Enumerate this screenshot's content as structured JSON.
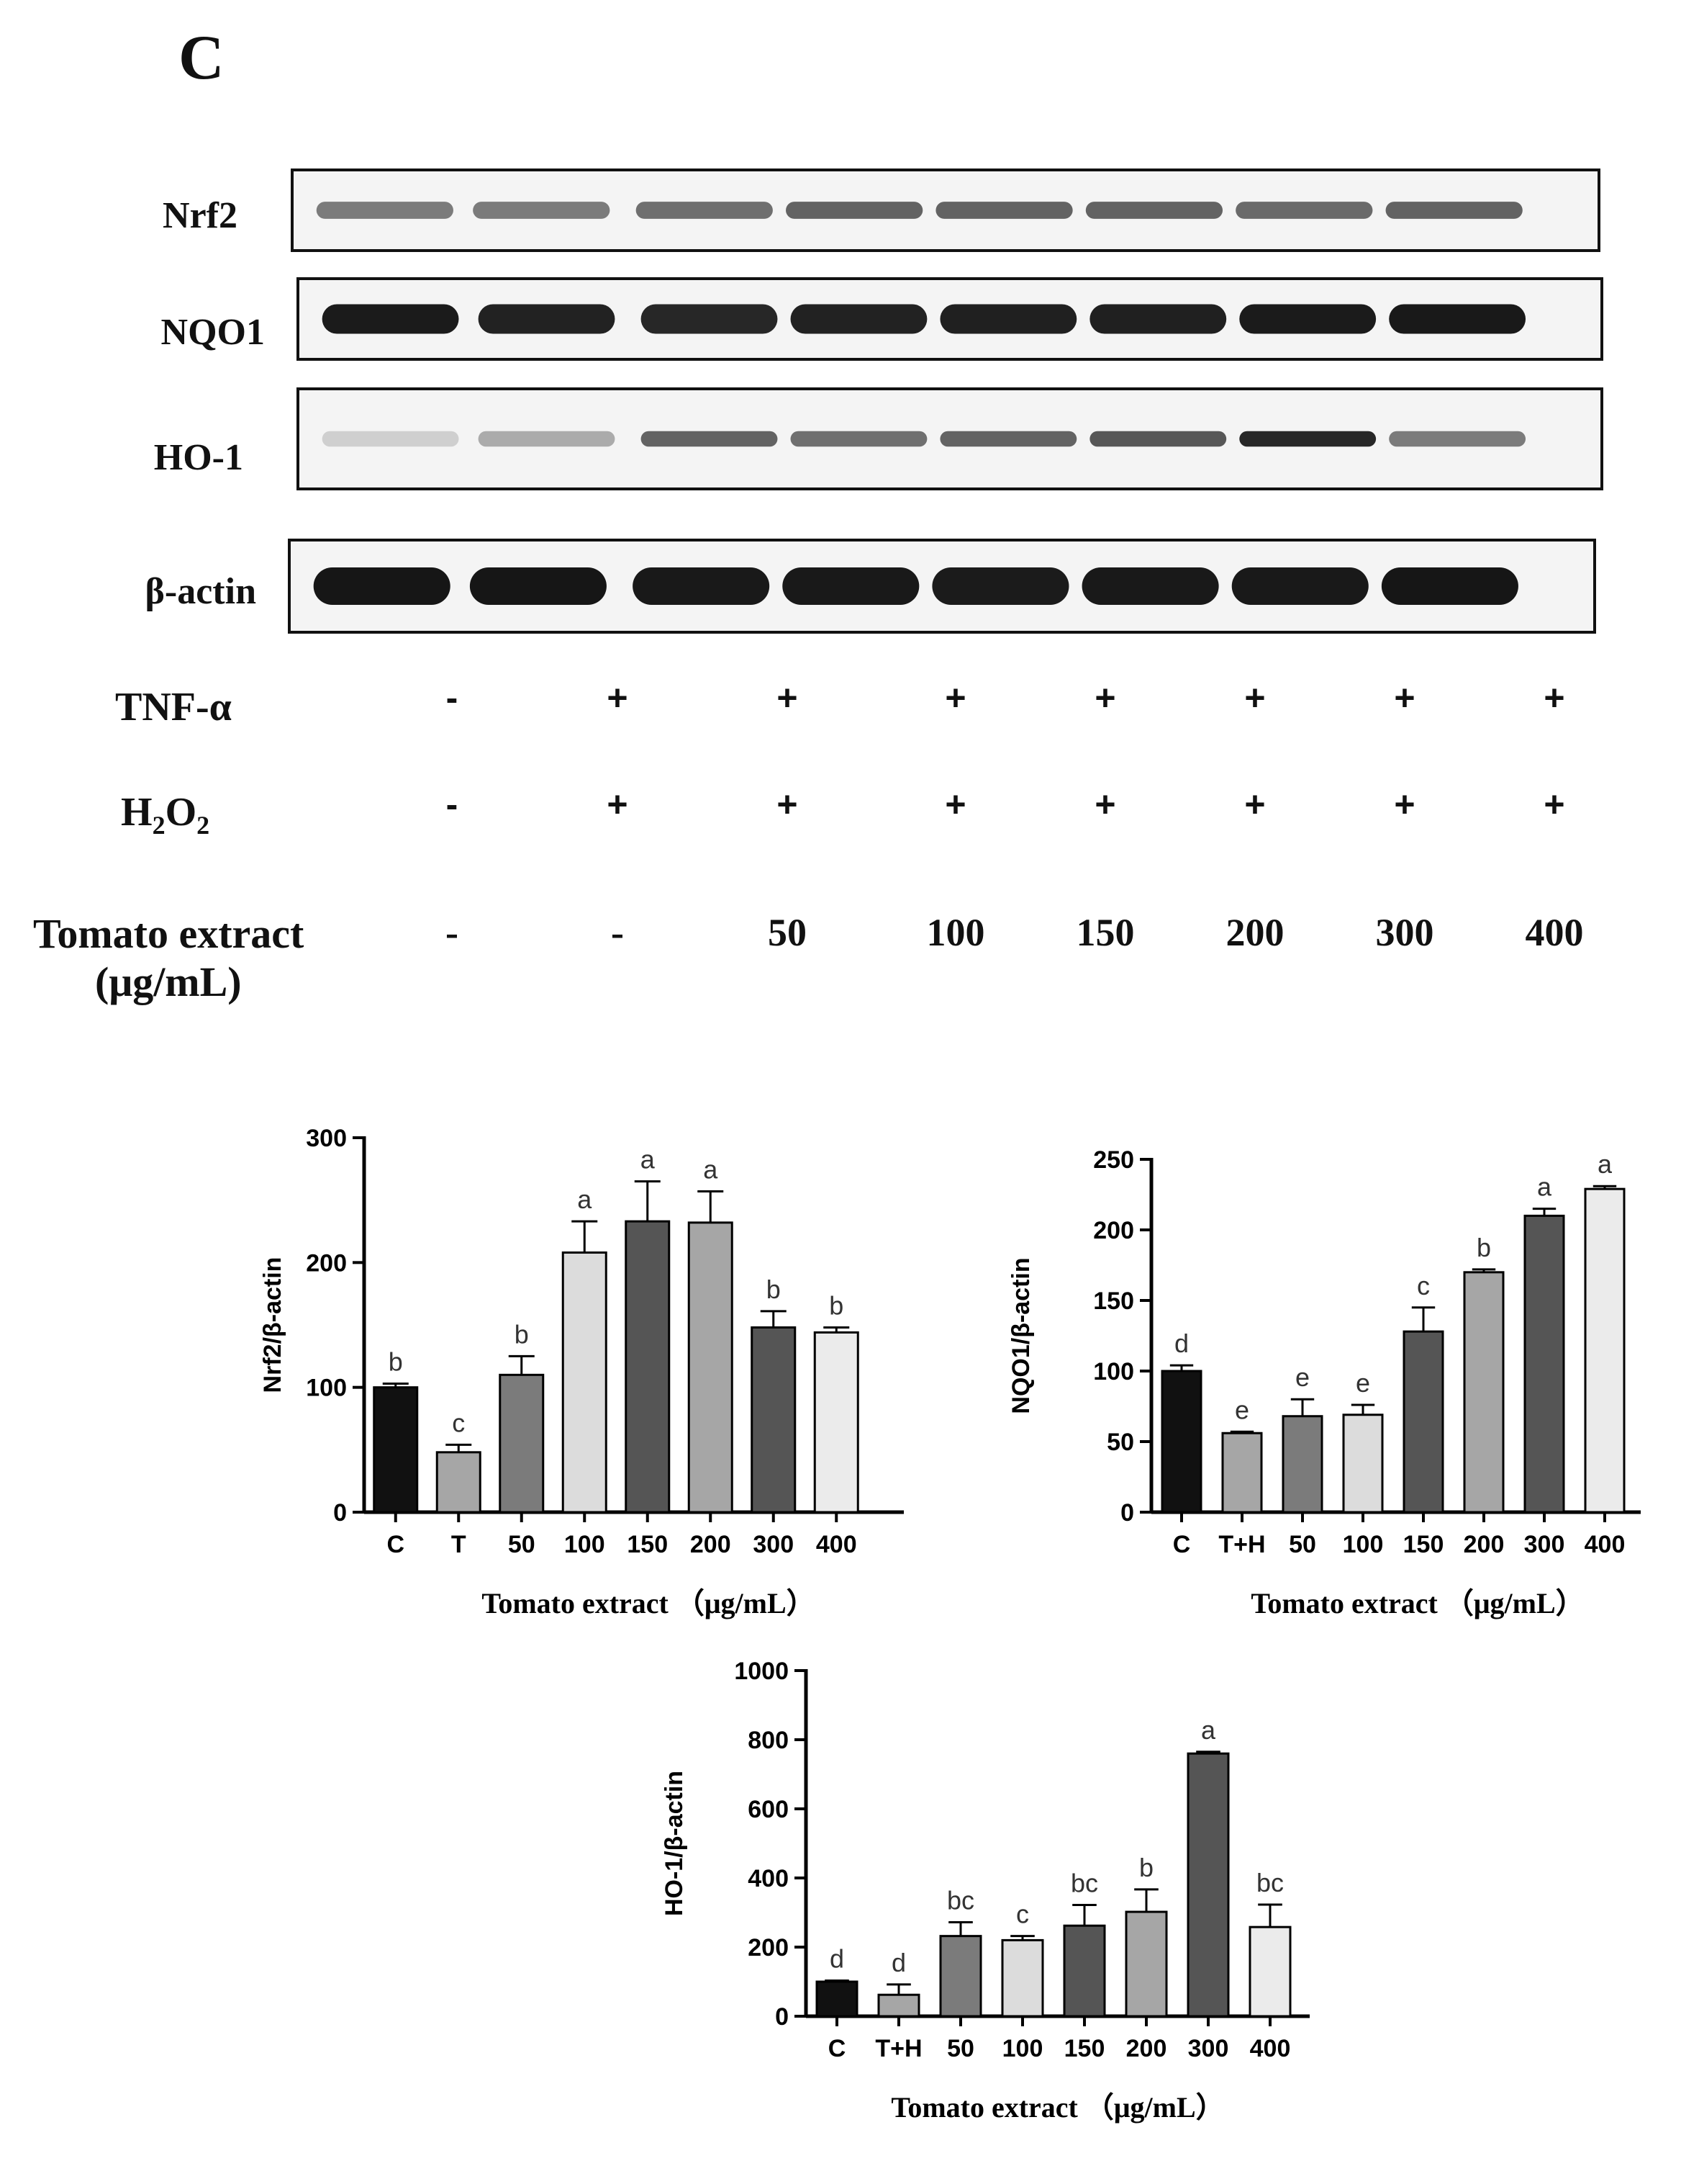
{
  "panel_label": "C",
  "blot": {
    "rows": [
      {
        "label": "Nrf2",
        "intensity": [
          0.55,
          0.55,
          0.6,
          0.65,
          0.65,
          0.65,
          0.62,
          0.65
        ],
        "thickness": 0.22
      },
      {
        "label": "NQO1",
        "intensity": [
          0.95,
          0.92,
          0.9,
          0.92,
          0.93,
          0.93,
          0.95,
          0.96
        ],
        "thickness": 0.38
      },
      {
        "label": "HO-1",
        "intensity": [
          0.2,
          0.35,
          0.65,
          0.6,
          0.65,
          0.7,
          0.9,
          0.55
        ],
        "thickness": 0.16
      },
      {
        "label": "β-actin",
        "intensity": [
          0.97,
          0.97,
          0.96,
          0.96,
          0.95,
          0.96,
          0.96,
          0.97
        ],
        "thickness": 0.42
      }
    ],
    "treatments": {
      "tnf_label": "TNF-α",
      "h2o2_label": "H",
      "h2o2_sub1": "2",
      "h2o2_o": "O",
      "h2o2_sub2": "2",
      "tnf_marks": [
        "-",
        "+",
        "+",
        "+",
        "+",
        "+",
        "+",
        "+"
      ],
      "h2o2_marks": [
        "-",
        "+",
        "+",
        "+",
        "+",
        "+",
        "+",
        "+"
      ],
      "tomato_label_line1": "Tomato extract",
      "tomato_label_line2": "(μg/mL)",
      "tomato_doses": [
        "-",
        "-",
        "50",
        "100",
        "150",
        "200",
        "300",
        "400"
      ]
    }
  },
  "chart_data": [
    {
      "type": "bar",
      "title": "",
      "ylabel": "Nrf2/β-actin",
      "xlabel": "Tomato extract （μg/mL）",
      "categories": [
        "C",
        "T",
        "50",
        "100",
        "150",
        "200",
        "300",
        "400"
      ],
      "values": [
        100,
        48,
        110,
        208,
        233,
        232,
        148,
        144
      ],
      "errors": [
        3,
        6,
        15,
        25,
        32,
        25,
        13,
        4
      ],
      "letters": [
        "b",
        "c",
        "b",
        "a",
        "a",
        "a",
        "b",
        "b"
      ],
      "ylim": [
        0,
        300
      ],
      "yticks": [
        0,
        100,
        200,
        300
      ],
      "bar_colors": [
        "#111111",
        "#a6a6a6",
        "#7b7b7b",
        "#dcdcdc",
        "#555555",
        "#a6a6a6",
        "#555555",
        "#ebebeb"
      ]
    },
    {
      "type": "bar",
      "title": "",
      "ylabel": "NQO1/β-actin",
      "xlabel": "Tomato extract （μg/mL）",
      "categories": [
        "C",
        "T+H",
        "50",
        "100",
        "150",
        "200",
        "300",
        "400"
      ],
      "values": [
        100,
        56,
        68,
        69,
        128,
        170,
        210,
        229
      ],
      "errors": [
        4,
        1,
        12,
        7,
        17,
        2,
        5,
        2
      ],
      "letters": [
        "d",
        "e",
        "e",
        "e",
        "c",
        "b",
        "a",
        "a"
      ],
      "ylim": [
        0,
        250
      ],
      "yticks": [
        0,
        50,
        100,
        150,
        200,
        250
      ],
      "bar_colors": [
        "#111111",
        "#a6a6a6",
        "#7b7b7b",
        "#dcdcdc",
        "#555555",
        "#a6a6a6",
        "#555555",
        "#ebebeb"
      ]
    },
    {
      "type": "bar",
      "title": "",
      "ylabel": "HO-1/β-actin",
      "xlabel": "Tomato extract （μg/mL）",
      "categories": [
        "C",
        "T+H",
        "50",
        "100",
        "150",
        "200",
        "300",
        "400"
      ],
      "values": [
        100,
        62,
        232,
        220,
        262,
        302,
        760,
        258
      ],
      "errors": [
        3,
        30,
        40,
        12,
        60,
        65,
        5,
        65
      ],
      "letters": [
        "d",
        "d",
        "bc",
        "c",
        "bc",
        "b",
        "a",
        "bc"
      ],
      "ylim": [
        0,
        1000
      ],
      "yticks": [
        0,
        200,
        400,
        600,
        800,
        1000
      ],
      "bar_colors": [
        "#111111",
        "#a6a6a6",
        "#7b7b7b",
        "#dcdcdc",
        "#555555",
        "#a6a6a6",
        "#555555",
        "#ebebeb"
      ]
    }
  ]
}
